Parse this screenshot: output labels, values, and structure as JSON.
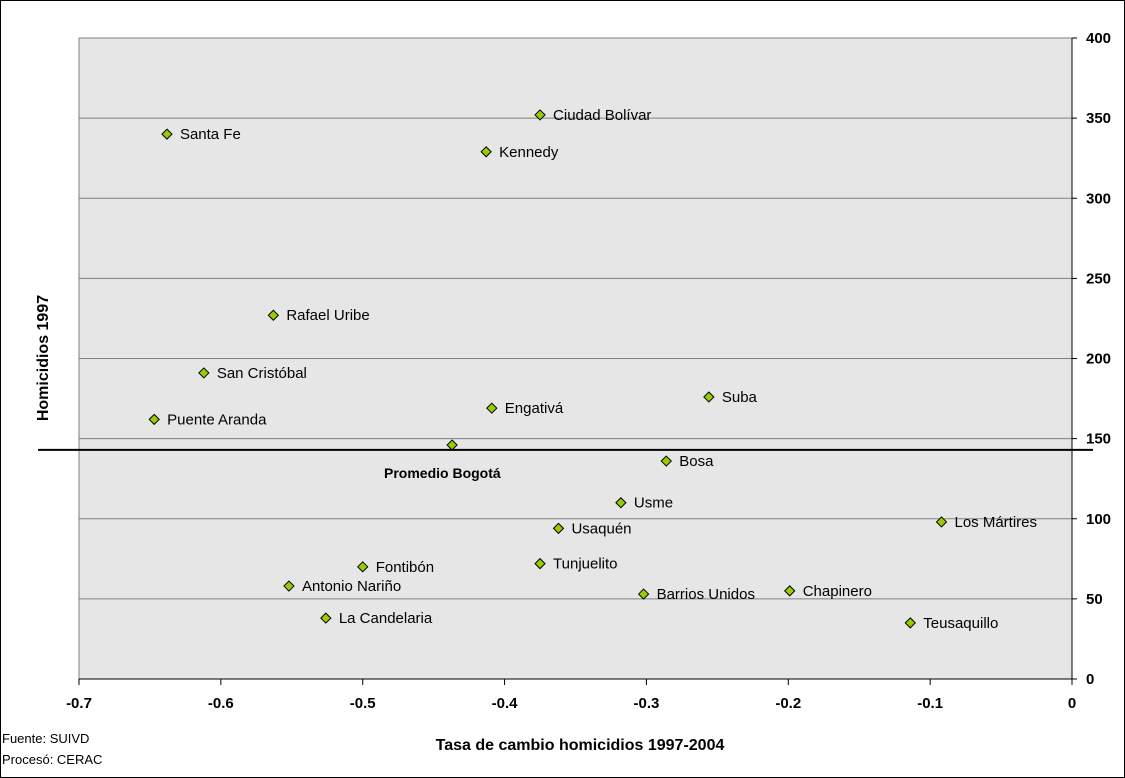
{
  "chart_data": {
    "type": "scatter",
    "title": "",
    "xlabel": "Tasa de cambio homicidios 1997-2004",
    "ylabel": "Homicidios 1997",
    "xlim": [
      -0.7,
      0
    ],
    "ylim": [
      0,
      400
    ],
    "x_ticks": [
      -0.7,
      -0.6,
      -0.5,
      -0.4,
      -0.3,
      -0.2,
      -0.1,
      0
    ],
    "x_tick_labels": [
      "-0.7",
      "-0.6",
      "-0.5",
      "-0.4",
      "-0.3",
      "-0.2",
      "-0.1",
      "0"
    ],
    "y_ticks": [
      0,
      50,
      100,
      150,
      200,
      250,
      300,
      350,
      400
    ],
    "y_tick_labels": [
      "0",
      "50",
      "100",
      "150",
      "200",
      "250",
      "300",
      "350",
      "400"
    ],
    "y_axis_side": "right",
    "grid": true,
    "marker_color": "#99cc00",
    "plot_background": "#e6e6e6",
    "points": [
      {
        "label": "Santa Fe",
        "x": -0.638,
        "y": 340
      },
      {
        "label": "Ciudad Bolívar",
        "x": -0.375,
        "y": 352
      },
      {
        "label": "Kennedy",
        "x": -0.413,
        "y": 329
      },
      {
        "label": "Rafael Uribe",
        "x": -0.563,
        "y": 227
      },
      {
        "label": "San Cristóbal",
        "x": -0.612,
        "y": 191
      },
      {
        "label": "Puente Aranda",
        "x": -0.647,
        "y": 162
      },
      {
        "label": "Engativá",
        "x": -0.409,
        "y": 169
      },
      {
        "label": "Suba",
        "x": -0.256,
        "y": 176
      },
      {
        "label": "Bosa",
        "x": -0.286,
        "y": 136
      },
      {
        "label": "Usme",
        "x": -0.318,
        "y": 110
      },
      {
        "label": "Usaquén",
        "x": -0.362,
        "y": 94
      },
      {
        "label": "Los Mártires",
        "x": -0.092,
        "y": 98
      },
      {
        "label": "Fontibón",
        "x": -0.5,
        "y": 70
      },
      {
        "label": "Antonio Nariño",
        "x": -0.552,
        "y": 58
      },
      {
        "label": "Tunjuelito",
        "x": -0.375,
        "y": 72
      },
      {
        "label": "Barrios Unidos",
        "x": -0.302,
        "y": 53
      },
      {
        "label": "Chapinero",
        "x": -0.199,
        "y": 55
      },
      {
        "label": "La Candelaria",
        "x": -0.526,
        "y": 38
      },
      {
        "label": "Teusaquillo",
        "x": -0.114,
        "y": 35
      },
      {
        "label": "",
        "x": -0.437,
        "y": 146
      }
    ],
    "reference_line": {
      "label": "Promedio Bogotá",
      "y": 143
    }
  },
  "footer": {
    "source": "Fuente: SUIVD",
    "processed": "Procesó: CERAC"
  }
}
